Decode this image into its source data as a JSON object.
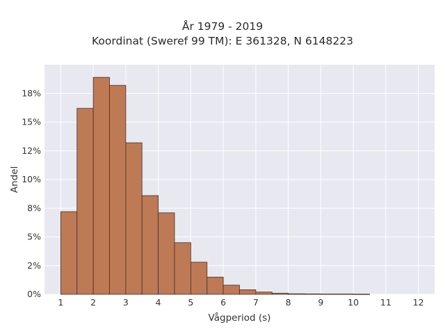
{
  "chart_data": {
    "type": "bar",
    "title": "År 1979 - 2019",
    "subtitle": "Koordinat (Sweref 99 TM): E 361328, N 6148223",
    "xlabel": "Vågperiod (s)",
    "ylabel": "Andel",
    "x_ticks": [
      "1",
      "2",
      "3",
      "4",
      "5",
      "6",
      "7",
      "8",
      "9",
      "10",
      "11",
      "12"
    ],
    "y_ticks": [
      "0%",
      "2%",
      "5%",
      "8%",
      "10%",
      "12%",
      "15%",
      "18%"
    ],
    "y_tick_values": [
      0,
      2.5,
      5,
      7.5,
      10,
      12.5,
      15,
      17.5
    ],
    "xlim": [
      0.5,
      12.5
    ],
    "ylim": [
      0,
      20
    ],
    "bin_width": 0.5,
    "bins": [
      {
        "x_start": 1.0,
        "value": 7.2
      },
      {
        "x_start": 1.5,
        "value": 16.2
      },
      {
        "x_start": 2.0,
        "value": 18.9
      },
      {
        "x_start": 2.5,
        "value": 18.2
      },
      {
        "x_start": 3.0,
        "value": 13.2
      },
      {
        "x_start": 3.5,
        "value": 8.6
      },
      {
        "x_start": 4.0,
        "value": 7.1
      },
      {
        "x_start": 4.5,
        "value": 4.5
      },
      {
        "x_start": 5.0,
        "value": 2.8
      },
      {
        "x_start": 5.5,
        "value": 1.5
      },
      {
        "x_start": 6.0,
        "value": 0.8
      },
      {
        "x_start": 6.5,
        "value": 0.4
      },
      {
        "x_start": 7.0,
        "value": 0.2
      },
      {
        "x_start": 7.5,
        "value": 0.1
      },
      {
        "x_start": 8.0,
        "value": 0.05
      },
      {
        "x_start": 8.5,
        "value": 0.04
      },
      {
        "x_start": 9.0,
        "value": 0.03
      },
      {
        "x_start": 9.5,
        "value": 0.03
      },
      {
        "x_start": 10.0,
        "value": 0.02
      }
    ],
    "grid": true,
    "colors": {
      "bar_fill": "#bd7a55",
      "bar_stroke": "#4a2e22",
      "plot_background": "#e8e8f0",
      "grid": "#ffffff"
    }
  }
}
